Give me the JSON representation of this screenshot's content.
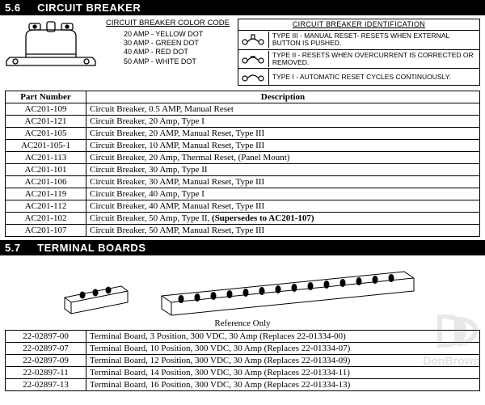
{
  "section1": {
    "num": "5.6",
    "title": "CIRCUIT BREAKER"
  },
  "color_code": {
    "title": "CIRCUIT BREAKER COLOR CODE",
    "rows": [
      "20 AMP -  YELLOW DOT",
      "30 AMP -  GREEN DOT",
      "40 AMP -  RED DOT",
      "50 AMP -  WHITE DOT"
    ]
  },
  "ident": {
    "title": "CIRCUIT BREAKER IDENTIFICATION",
    "rows": [
      "TYPE III -  MANUAL RESET- RESETS WHEN EXTERNAL BUTTON IS PUSHED.",
      "TYPE II -  RESETS WHEN OVERCURRENT IS CORRECTED OR REMOVED.",
      "TYPE I -  AUTOMATIC RESET CYCLES CONTINUOUSLY."
    ]
  },
  "parts1": {
    "columns": [
      "Part Number",
      "Description"
    ],
    "rows": [
      [
        "AC201-109",
        "Circuit Breaker, 0.5 AMP, Manual Reset"
      ],
      [
        "AC201-121",
        "Circuit Breaker, 20 Amp, Type I"
      ],
      [
        "AC201-105",
        "Circuit Breaker, 20 AMP, Manual Reset, Type III"
      ],
      [
        "AC201-105-1",
        "Circuit Breaker, 10 AMP, Manual Reset, Type III"
      ],
      [
        "AC201-113",
        "Circuit Breaker, 20 Amp, Thermal Reset, (Panel Mount)"
      ],
      [
        "AC201-101",
        "Circuit Breaker, 30 Amp, Type II"
      ],
      [
        "AC201-106",
        "Circuit Breaker, 30 AMP, Manual Reset, Type III"
      ],
      [
        "AC201-119",
        "Circuit Breaker, 40 Amp, Type I"
      ],
      [
        "AC201-112",
        "Circuit Breaker, 40 AMP, Manual Reset, Type III"
      ],
      [
        "AC201-102",
        "Circuit Breaker, 50 Amp, Type II, (Supersedes to AC201-107)"
      ],
      [
        "AC201-107",
        "Circuit Breaker, 50 AMP, Manual Reset, Type III"
      ]
    ],
    "bold_row_index": 9
  },
  "section2": {
    "num": "5.7",
    "title": "TERMINAL BOARDS"
  },
  "ref_only": "Reference Only",
  "parts2": {
    "rows": [
      [
        "22-02897-00",
        "Terminal Board, 3 Position, 300 VDC, 30 Amp (Replaces 22-01334-00)"
      ],
      [
        "22-02897-07",
        "Terminal Board, 10 Position, 300 VDC, 30 Amp (Replaces 22-01334-07)"
      ],
      [
        "22-02897-09",
        "Terminal Board, 12 Position, 300 VDC, 30 Amp (Replaces 22-01334-09)"
      ],
      [
        "22-02897-11",
        "Terminal Board, 14 Position, 300 VDC, 30 Amp (Replaces 22-01334-11)"
      ],
      [
        "22-02897-13",
        "Terminal Board, 16 Position, 300 VDC, 30 Amp (Replaces 22-01334-13)"
      ]
    ]
  },
  "watermark": "DonBrown"
}
